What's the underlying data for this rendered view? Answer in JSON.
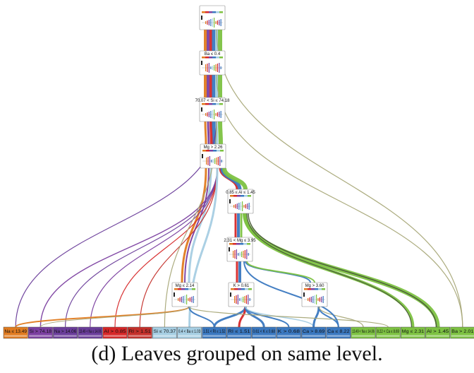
{
  "caption": "(d) Leaves grouped on same level.",
  "colors": {
    "Na": "#e07b20",
    "Si": "#7b3fa0",
    "Na2": "#6a3d9a",
    "Al": "#d62728",
    "RI": "#c4302b",
    "SiLight": "#a6cee3",
    "blue": "#3a78c0",
    "green": "#7dc242",
    "tan": "#a8a878"
  },
  "nodes": [
    {
      "id": "root",
      "label": ""
    },
    {
      "id": "n1",
      "label": "Ba ≤ 0.4"
    },
    {
      "id": "n2",
      "label": "70.07 < Si ≤ 74.18"
    },
    {
      "id": "n3",
      "label": "Mg > 2.26"
    },
    {
      "id": "n4",
      "label": "0.85 ≤ Al ≤ 1.45"
    },
    {
      "id": "n5",
      "label": "2.31 < Mg ≤ 3.95"
    },
    {
      "id": "n6",
      "label": "Mg ≤ 2.14"
    },
    {
      "id": "n7",
      "label": "K > 0.61"
    },
    {
      "id": "n8",
      "label": "Mg > 3.60"
    }
  ],
  "leaves": [
    {
      "label": "Na ≤ 13.49",
      "color": "#e07b20"
    },
    {
      "label": "Si > 74.18",
      "color": "#7b3fa0"
    },
    {
      "label": "Na > 14.06",
      "color": "#6a3d9a"
    },
    {
      "label": "13.49 < Na ≤ 14.06",
      "color": "#6a3d9a"
    },
    {
      "label": "Al > 0.85",
      "color": "#d62728"
    },
    {
      "label": "RI > 1.51",
      "color": "#c4302b"
    },
    {
      "label": "Si ≤ 70.37",
      "color": "#a6cee3"
    },
    {
      "label": "0.4 < Ba ≤ 1.03",
      "color": "#a6cee3"
    },
    {
      "label": "1.51 < RI ≤ 1.52",
      "color": "#3a78c0"
    },
    {
      "label": "RI ≤ 1.51",
      "color": "#3a78c0"
    },
    {
      "label": "0.61 < K ≤ 0.68",
      "color": "#3a78c0"
    },
    {
      "label": "K > 0.68",
      "color": "#3a78c0"
    },
    {
      "label": "Ca > 8.69",
      "color": "#3a78c0"
    },
    {
      "label": "Ca ≤ 8.22",
      "color": "#3a78c0"
    },
    {
      "label": "13.49 < Na ≤ 14.06",
      "color": "#7dc242"
    },
    {
      "label": "8.22 < Ca ≤ 8.69",
      "color": "#7dc242"
    },
    {
      "label": "Mg ≤ 2.31",
      "color": "#7dc242"
    },
    {
      "label": "Al > 1.45",
      "color": "#7dc242"
    },
    {
      "label": "Ba > 2.01",
      "color": "#7dc242"
    }
  ]
}
